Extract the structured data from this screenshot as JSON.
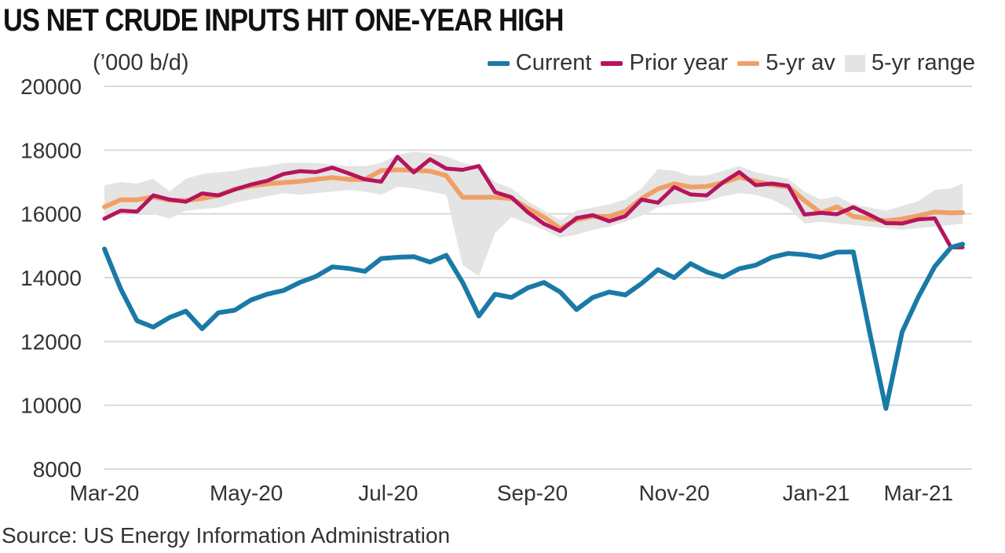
{
  "header": {
    "title": "US NET CRUDE INPUTS HIT ONE-YEAR HIGH",
    "unit": "(’000 b/d)"
  },
  "footer": {
    "source": "Source: US Energy Information Administration"
  },
  "colors": {
    "current": "#1a7aa6",
    "prior_year": "#b5145e",
    "avg5": "#f0a066",
    "range5": "#e4e4e4",
    "grid": "#d9d9d9"
  },
  "chart_data": {
    "type": "line",
    "title": "US NET CRUDE INPUTS HIT ONE-YEAR HIGH",
    "ylabel": "(’000 b/d)",
    "ylim": [
      8000,
      20000
    ],
    "y_ticks": [
      "8000",
      "10000",
      "12000",
      "14000",
      "16000",
      "18000",
      "20000"
    ],
    "x_ticks": [
      "Mar-20",
      "May-20",
      "Jul-20",
      "Sep-20",
      "Nov-20",
      "Jan-21",
      "Mar-21"
    ],
    "x_range": [
      "2020-03-01",
      "2021-03-05"
    ],
    "grid": "horizontal",
    "legend_position": "top-right",
    "legend": [
      "Current",
      "Prior year",
      "5-yr av",
      "5-yr range"
    ],
    "x": [
      "2020-03-01",
      "2020-03-08",
      "2020-03-15",
      "2020-03-22",
      "2020-03-29",
      "2020-04-05",
      "2020-04-12",
      "2020-04-19",
      "2020-04-26",
      "2020-05-03",
      "2020-05-10",
      "2020-05-17",
      "2020-05-24",
      "2020-05-31",
      "2020-06-07",
      "2020-06-14",
      "2020-06-21",
      "2020-06-28",
      "2020-07-05",
      "2020-07-12",
      "2020-07-19",
      "2020-07-26",
      "2020-08-02",
      "2020-08-09",
      "2020-08-16",
      "2020-08-23",
      "2020-08-30",
      "2020-09-06",
      "2020-09-13",
      "2020-09-20",
      "2020-09-27",
      "2020-10-04",
      "2020-10-11",
      "2020-10-18",
      "2020-10-25",
      "2020-11-01",
      "2020-11-08",
      "2020-11-15",
      "2020-11-22",
      "2020-11-29",
      "2020-12-06",
      "2020-12-13",
      "2020-12-20",
      "2020-12-27",
      "2021-01-03",
      "2021-01-10",
      "2021-01-17",
      "2021-01-24",
      "2021-01-31",
      "2021-02-07",
      "2021-02-14",
      "2021-02-21",
      "2021-02-28",
      "2021-03-05"
    ],
    "series": [
      {
        "name": "Current",
        "values": [
          14900,
          13650,
          12650,
          12450,
          12750,
          12950,
          12400,
          12900,
          12980,
          13300,
          13480,
          13600,
          13850,
          14040,
          14340,
          14290,
          14200,
          14600,
          14640,
          14660,
          14490,
          14700,
          13850,
          12800,
          13480,
          13380,
          13680,
          13850,
          13550,
          13000,
          13380,
          13550,
          13460,
          13820,
          14250,
          14000,
          14440,
          14180,
          14020,
          14280,
          14390,
          14640,
          14760,
          14720,
          14640,
          14800,
          14810,
          12300,
          9900,
          12300,
          13400,
          14350,
          14950,
          15050
        ]
      },
      {
        "name": "Prior year",
        "values": [
          15850,
          16100,
          16070,
          16580,
          16450,
          16380,
          16640,
          16580,
          16760,
          16920,
          17040,
          17250,
          17340,
          17310,
          17450,
          17270,
          17080,
          17010,
          17790,
          17300,
          17710,
          17420,
          17380,
          17500,
          16680,
          16520,
          16050,
          15690,
          15460,
          15870,
          15960,
          15770,
          15930,
          16450,
          16350,
          16840,
          16610,
          16580,
          16990,
          17310,
          16900,
          16950,
          16880,
          15980,
          16030,
          15990,
          16210,
          15970,
          15710,
          15700,
          15830,
          15860,
          14950,
          14950
        ]
      },
      {
        "name": "5-yr av",
        "values": [
          16220,
          16440,
          16440,
          16530,
          16430,
          16420,
          16480,
          16580,
          16780,
          16880,
          16940,
          16980,
          17020,
          17080,
          17140,
          17080,
          17080,
          17360,
          17380,
          17370,
          17340,
          17200,
          16520,
          16520,
          16520,
          16480,
          16180,
          15900,
          15540,
          15820,
          15920,
          15920,
          16080,
          16480,
          16780,
          16940,
          16840,
          16860,
          16980,
          17150,
          17020,
          16910,
          16850,
          16420,
          16030,
          16220,
          15920,
          15850,
          15780,
          15840,
          15940,
          16060,
          16030,
          16040
        ]
      },
      {
        "name": "5-yr range",
        "low": [
          15950,
          16100,
          16050,
          16000,
          15850,
          16100,
          16150,
          16200,
          16350,
          16450,
          16550,
          16650,
          16600,
          16650,
          16700,
          16750,
          16700,
          16600,
          16850,
          16800,
          16700,
          16600,
          14400,
          14050,
          15400,
          15900,
          15700,
          15500,
          15250,
          15350,
          15500,
          15600,
          15750,
          15950,
          16200,
          16300,
          16350,
          16400,
          16550,
          16650,
          16600,
          16450,
          16200,
          15700,
          15750,
          15700,
          15650,
          15600,
          15550,
          15500,
          15550,
          15600,
          15650,
          15700
        ],
        "high": [
          16900,
          17000,
          16950,
          17100,
          16700,
          17100,
          17250,
          17300,
          17350,
          17450,
          17500,
          17600,
          17600,
          17600,
          17550,
          17500,
          17500,
          17600,
          17850,
          17950,
          17900,
          17800,
          17600,
          17500,
          17000,
          16800,
          16400,
          16100,
          15800,
          16100,
          16200,
          16300,
          16450,
          16800,
          17400,
          17350,
          17200,
          17200,
          17350,
          17500,
          17300,
          17200,
          17100,
          16700,
          16450,
          16550,
          16300,
          16200,
          16100,
          16250,
          16400,
          16750,
          16800,
          16950
        ]
      }
    ]
  }
}
